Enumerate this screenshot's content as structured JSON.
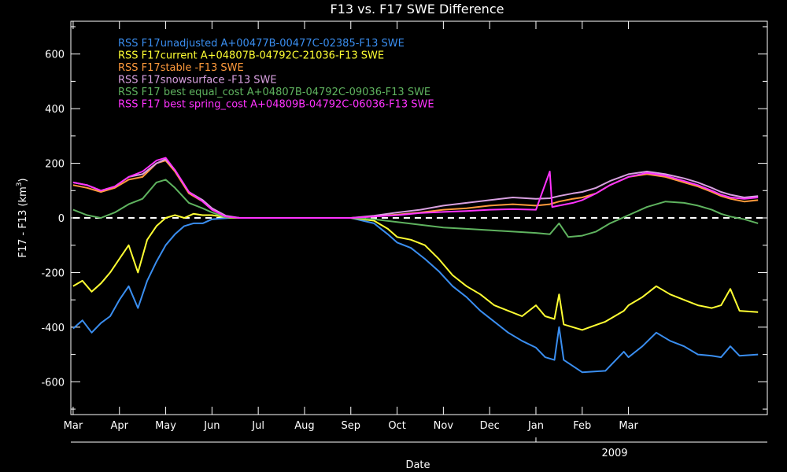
{
  "chart_data": {
    "type": "line",
    "title": "F13 vs. F17 SWE Difference",
    "xlabel": "Date",
    "ylabel": "F17 - F13 (km",
    "ylabel_superscript": "3",
    "ylabel_suffix": ")",
    "year_label": "2009",
    "ylim": [
      -720,
      720
    ],
    "yticks": [
      -600,
      -400,
      -200,
      0,
      200,
      400,
      600
    ],
    "x_months": [
      "Mar",
      "Apr",
      "May",
      "Jun",
      "Jul",
      "Aug",
      "Sep",
      "Oct",
      "Nov",
      "Dec",
      "Jan",
      "Feb",
      "Mar"
    ],
    "zero_line": "dashed",
    "legend_position": "top-left",
    "series": [
      {
        "name": "RSS F17unadjusted A+00477B-00477C-02385-F13 SWE",
        "color": "#3a8ef0",
        "values": [
          [
            1.0,
            -405
          ],
          [
            1.2,
            -375
          ],
          [
            1.4,
            -420
          ],
          [
            1.6,
            -385
          ],
          [
            1.8,
            -360
          ],
          [
            2.0,
            -300
          ],
          [
            2.2,
            -250
          ],
          [
            2.4,
            -330
          ],
          [
            2.6,
            -230
          ],
          [
            2.8,
            -160
          ],
          [
            3.0,
            -100
          ],
          [
            3.2,
            -60
          ],
          [
            3.4,
            -30
          ],
          [
            3.6,
            -20
          ],
          [
            3.8,
            -20
          ],
          [
            4.0,
            -5
          ],
          [
            4.2,
            -2
          ],
          [
            4.4,
            0
          ],
          [
            5,
            0
          ],
          [
            6,
            0
          ],
          [
            7,
            0
          ],
          [
            7.5,
            -20
          ],
          [
            7.8,
            -60
          ],
          [
            8.0,
            -90
          ],
          [
            8.3,
            -110
          ],
          [
            8.6,
            -150
          ],
          [
            8.9,
            -195
          ],
          [
            9.2,
            -250
          ],
          [
            9.5,
            -290
          ],
          [
            9.8,
            -340
          ],
          [
            10.1,
            -380
          ],
          [
            10.4,
            -420
          ],
          [
            10.7,
            -450
          ],
          [
            11.0,
            -475
          ],
          [
            11.2,
            -510
          ],
          [
            11.4,
            -520
          ],
          [
            11.5,
            -400
          ],
          [
            11.6,
            -520
          ],
          [
            12.0,
            -565
          ],
          [
            12.5,
            -560
          ],
          [
            12.9,
            -490
          ],
          [
            13.0,
            -510
          ],
          [
            13.3,
            -470
          ],
          [
            13.6,
            -420
          ],
          [
            13.9,
            -450
          ],
          [
            14.2,
            -470
          ],
          [
            14.5,
            -500
          ],
          [
            14.8,
            -505
          ],
          [
            15.0,
            -510
          ],
          [
            15.2,
            -470
          ],
          [
            15.4,
            -505
          ],
          [
            15.8,
            -500
          ]
        ]
      },
      {
        "name": "RSS F17current A+04807B-04792C-21036-F13 SWE",
        "color": "#ffff33",
        "values": [
          [
            1.0,
            -250
          ],
          [
            1.2,
            -230
          ],
          [
            1.4,
            -270
          ],
          [
            1.6,
            -240
          ],
          [
            1.8,
            -200
          ],
          [
            2.0,
            -150
          ],
          [
            2.2,
            -100
          ],
          [
            2.4,
            -200
          ],
          [
            2.6,
            -80
          ],
          [
            2.8,
            -30
          ],
          [
            3.0,
            0
          ],
          [
            3.2,
            10
          ],
          [
            3.4,
            0
          ],
          [
            3.6,
            15
          ],
          [
            3.8,
            10
          ],
          [
            4.0,
            10
          ],
          [
            4.2,
            5
          ],
          [
            4.4,
            0
          ],
          [
            5,
            0
          ],
          [
            6,
            0
          ],
          [
            7,
            0
          ],
          [
            7.5,
            -10
          ],
          [
            7.8,
            -40
          ],
          [
            8.0,
            -70
          ],
          [
            8.3,
            -80
          ],
          [
            8.6,
            -100
          ],
          [
            8.9,
            -150
          ],
          [
            9.2,
            -210
          ],
          [
            9.5,
            -250
          ],
          [
            9.8,
            -280
          ],
          [
            10.1,
            -320
          ],
          [
            10.4,
            -340
          ],
          [
            10.7,
            -360
          ],
          [
            11.0,
            -320
          ],
          [
            11.2,
            -360
          ],
          [
            11.4,
            -370
          ],
          [
            11.5,
            -280
          ],
          [
            11.6,
            -390
          ],
          [
            12.0,
            -410
          ],
          [
            12.5,
            -380
          ],
          [
            12.9,
            -340
          ],
          [
            13.0,
            -320
          ],
          [
            13.3,
            -290
          ],
          [
            13.6,
            -250
          ],
          [
            13.9,
            -280
          ],
          [
            14.2,
            -300
          ],
          [
            14.5,
            -320
          ],
          [
            14.8,
            -330
          ],
          [
            15.0,
            -320
          ],
          [
            15.2,
            -260
          ],
          [
            15.4,
            -340
          ],
          [
            15.8,
            -345
          ]
        ]
      },
      {
        "name": "RSS F17stable -F13 SWE",
        "color": "#ff9a3c",
        "values": [
          [
            1.0,
            120
          ],
          [
            1.3,
            110
          ],
          [
            1.6,
            95
          ],
          [
            1.9,
            110
          ],
          [
            2.2,
            140
          ],
          [
            2.5,
            150
          ],
          [
            2.8,
            200
          ],
          [
            3.0,
            210
          ],
          [
            3.2,
            170
          ],
          [
            3.5,
            90
          ],
          [
            3.8,
            60
          ],
          [
            4.0,
            30
          ],
          [
            4.3,
            5
          ],
          [
            4.6,
            0
          ],
          [
            5,
            0
          ],
          [
            6,
            0
          ],
          [
            7,
            0
          ],
          [
            7.5,
            5
          ],
          [
            8.0,
            12
          ],
          [
            8.5,
            20
          ],
          [
            9.0,
            30
          ],
          [
            9.5,
            35
          ],
          [
            10.0,
            45
          ],
          [
            10.5,
            50
          ],
          [
            11.0,
            45
          ],
          [
            11.3,
            50
          ],
          [
            11.5,
            60
          ],
          [
            11.8,
            70
          ],
          [
            12.0,
            75
          ],
          [
            12.3,
            90
          ],
          [
            12.6,
            120
          ],
          [
            13.0,
            150
          ],
          [
            13.4,
            160
          ],
          [
            13.8,
            150
          ],
          [
            14.2,
            130
          ],
          [
            14.5,
            115
          ],
          [
            14.8,
            95
          ],
          [
            15.0,
            80
          ],
          [
            15.2,
            70
          ],
          [
            15.5,
            60
          ],
          [
            15.8,
            65
          ]
        ]
      },
      {
        "name": "RSS F17snowsurface -F13 SWE",
        "color": "#d8a0e0",
        "values": [
          [
            1.0,
            130
          ],
          [
            1.3,
            120
          ],
          [
            1.6,
            100
          ],
          [
            1.9,
            115
          ],
          [
            2.2,
            150
          ],
          [
            2.5,
            160
          ],
          [
            2.8,
            200
          ],
          [
            3.0,
            215
          ],
          [
            3.2,
            175
          ],
          [
            3.5,
            95
          ],
          [
            3.8,
            65
          ],
          [
            4.0,
            35
          ],
          [
            4.3,
            8
          ],
          [
            4.6,
            0
          ],
          [
            5,
            0
          ],
          [
            6,
            0
          ],
          [
            7,
            0
          ],
          [
            7.5,
            8
          ],
          [
            8.0,
            20
          ],
          [
            8.5,
            30
          ],
          [
            9.0,
            45
          ],
          [
            9.5,
            55
          ],
          [
            10.0,
            65
          ],
          [
            10.5,
            75
          ],
          [
            11.0,
            70
          ],
          [
            11.3,
            72
          ],
          [
            11.5,
            80
          ],
          [
            11.8,
            90
          ],
          [
            12.0,
            95
          ],
          [
            12.3,
            110
          ],
          [
            12.6,
            135
          ],
          [
            13.0,
            160
          ],
          [
            13.4,
            170
          ],
          [
            13.8,
            160
          ],
          [
            14.2,
            145
          ],
          [
            14.5,
            130
          ],
          [
            14.8,
            110
          ],
          [
            15.0,
            95
          ],
          [
            15.2,
            85
          ],
          [
            15.5,
            75
          ],
          [
            15.8,
            80
          ]
        ]
      },
      {
        "name": "RSS F17 best equal_cost A+04807B-04792C-09036-F13 SWE",
        "color": "#5fb35f",
        "values": [
          [
            1.0,
            30
          ],
          [
            1.3,
            10
          ],
          [
            1.6,
            0
          ],
          [
            1.9,
            20
          ],
          [
            2.2,
            50
          ],
          [
            2.5,
            70
          ],
          [
            2.8,
            130
          ],
          [
            3.0,
            140
          ],
          [
            3.2,
            110
          ],
          [
            3.5,
            55
          ],
          [
            3.8,
            35
          ],
          [
            4.0,
            20
          ],
          [
            4.3,
            2
          ],
          [
            4.6,
            0
          ],
          [
            5,
            0
          ],
          [
            6,
            0
          ],
          [
            7,
            0
          ],
          [
            7.5,
            -5
          ],
          [
            8.0,
            -15
          ],
          [
            8.5,
            -25
          ],
          [
            9.0,
            -35
          ],
          [
            9.5,
            -40
          ],
          [
            10.0,
            -45
          ],
          [
            10.5,
            -50
          ],
          [
            11.0,
            -55
          ],
          [
            11.3,
            -60
          ],
          [
            11.5,
            -20
          ],
          [
            11.7,
            -70
          ],
          [
            12.0,
            -65
          ],
          [
            12.3,
            -50
          ],
          [
            12.6,
            -20
          ],
          [
            13.0,
            10
          ],
          [
            13.4,
            40
          ],
          [
            13.8,
            60
          ],
          [
            14.2,
            55
          ],
          [
            14.5,
            45
          ],
          [
            14.8,
            30
          ],
          [
            15.0,
            15
          ],
          [
            15.2,
            5
          ],
          [
            15.5,
            -5
          ],
          [
            15.8,
            -20
          ]
        ]
      },
      {
        "name": "RSS F17 best spring_cost A+04809B-04792C-06036-F13 SWE",
        "color": "#ff33ff",
        "values": [
          [
            1.0,
            130
          ],
          [
            1.3,
            120
          ],
          [
            1.6,
            100
          ],
          [
            1.9,
            115
          ],
          [
            2.2,
            150
          ],
          [
            2.5,
            170
          ],
          [
            2.8,
            210
          ],
          [
            3.0,
            220
          ],
          [
            3.2,
            175
          ],
          [
            3.5,
            95
          ],
          [
            3.8,
            60
          ],
          [
            4.0,
            30
          ],
          [
            4.3,
            5
          ],
          [
            4.6,
            0
          ],
          [
            5,
            0
          ],
          [
            6,
            0
          ],
          [
            7,
            0
          ],
          [
            7.5,
            5
          ],
          [
            8.0,
            10
          ],
          [
            8.5,
            18
          ],
          [
            9.0,
            22
          ],
          [
            9.5,
            25
          ],
          [
            10.0,
            30
          ],
          [
            10.5,
            32
          ],
          [
            11.0,
            30
          ],
          [
            11.3,
            170
          ],
          [
            11.35,
            40
          ],
          [
            11.5,
            45
          ],
          [
            11.8,
            55
          ],
          [
            12.0,
            65
          ],
          [
            12.3,
            90
          ],
          [
            12.6,
            120
          ],
          [
            13.0,
            150
          ],
          [
            13.4,
            165
          ],
          [
            13.8,
            155
          ],
          [
            14.2,
            135
          ],
          [
            14.5,
            120
          ],
          [
            14.8,
            100
          ],
          [
            15.0,
            85
          ],
          [
            15.2,
            75
          ],
          [
            15.5,
            70
          ],
          [
            15.8,
            75
          ]
        ]
      }
    ]
  }
}
